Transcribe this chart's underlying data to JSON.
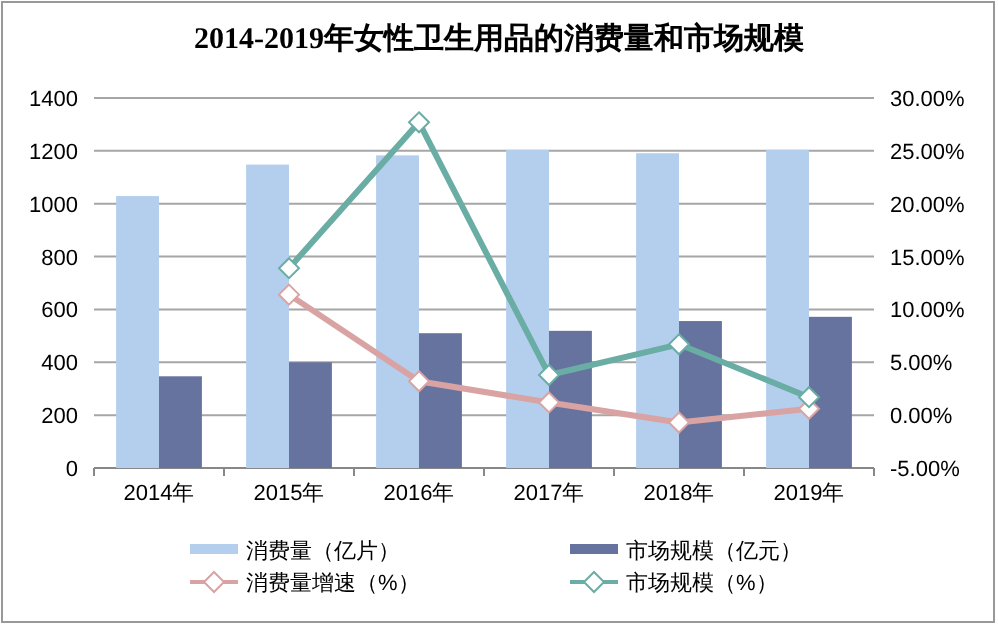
{
  "chart_data": {
    "type": "bar",
    "title": "2014-2019年女性卫生用品的消费量和市场规模",
    "categories": [
      "2014年",
      "2015年",
      "2016年",
      "2017年",
      "2018年",
      "2019年"
    ],
    "series": [
      {
        "name": "消费量（亿片）",
        "color": "#b4cfee",
        "values": [
          1029,
          1148,
          1183,
          1204,
          1191,
          1204
        ]
      },
      {
        "name": "市场规模（亿元）",
        "color": "#66739f",
        "values": [
          347,
          400,
          510,
          519,
          556,
          572
        ]
      },
      {
        "name": "消费量增速（%）",
        "type": "line",
        "axis": "y2",
        "color": "#d9a3a3",
        "marker": "diamond",
        "values": [
          null,
          11.4,
          3.2,
          1.2,
          -0.7,
          0.6
        ]
      },
      {
        "name": "市场规模（%）",
        "type": "line",
        "axis": "y2",
        "color": "#6aada5",
        "marker": "diamond",
        "values": [
          null,
          13.9,
          27.7,
          3.8,
          6.7,
          1.7
        ]
      }
    ],
    "ylim": [
      0,
      1400
    ],
    "yticks": [
      0,
      200,
      400,
      600,
      800,
      1000,
      1200,
      1400
    ],
    "y2lim": [
      -5,
      30
    ],
    "y2ticks": [
      {
        "value": -5,
        "label": "-5.00%"
      },
      {
        "value": 0,
        "label": "0.00%"
      },
      {
        "value": 5,
        "label": "5.00%"
      },
      {
        "value": 10,
        "label": "10.00%"
      },
      {
        "value": 15,
        "label": "15.00%"
      },
      {
        "value": 20,
        "label": "20.00%"
      },
      {
        "value": 25,
        "label": "25.00%"
      },
      {
        "value": 30,
        "label": "30.00%"
      }
    ],
    "grid": "y",
    "legend": "bottom"
  }
}
